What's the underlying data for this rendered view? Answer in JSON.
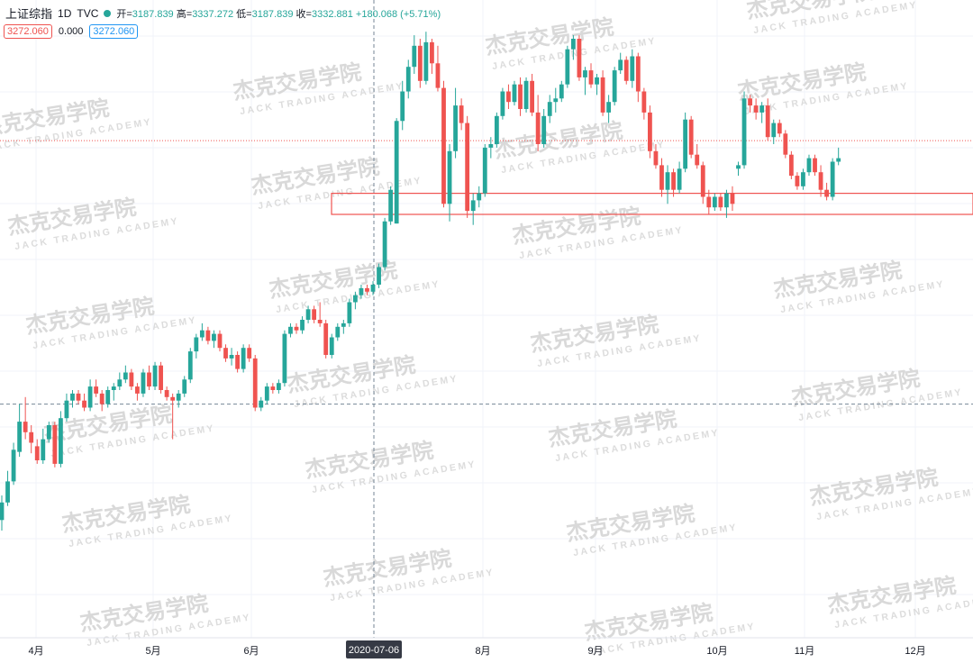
{
  "header": {
    "symbol": "上证综指",
    "interval": "1D",
    "source": "TVC",
    "status_color": "#26a69a",
    "ohlc": {
      "open_label": "开=",
      "open": "3187.839",
      "high_label": "高=",
      "high": "3337.272",
      "low_label": "低=",
      "low": "3187.839",
      "close_label": "收=",
      "close": "3332.881",
      "change": "+180.068 (+5.71%)"
    }
  },
  "indicator": {
    "left_value": "3272.060",
    "middle_value": "0.000",
    "right_value": "3272.060"
  },
  "watermark": {
    "cn": "杰克交易学院",
    "en": "JACK TRADING ACADEMY"
  },
  "colors": {
    "up": "#26a69a",
    "down": "#ef5350",
    "grid": "#f0f3fa",
    "crosshair": "#758696",
    "zone": "#ef5350"
  },
  "chart_data": {
    "type": "candlestick",
    "symbol": "上证综指",
    "interval": "1D",
    "x_tick_labels": [
      "4月",
      "5月",
      "6月",
      "8月",
      "9月",
      "10月",
      "11月",
      "12月"
    ],
    "crosshair_x_label": "2020-07-06",
    "ylim": [
      2600,
      3500
    ],
    "horizontal_levels": [
      {
        "value": 3305,
        "style": "dotted-red"
      },
      {
        "value": 2930,
        "style": "dashed-gray"
      }
    ],
    "zone": {
      "from": 3200,
      "to": 3230
    },
    "candles": [
      {
        "o": 2765,
        "h": 2800,
        "l": 2750,
        "c": 2790
      },
      {
        "o": 2790,
        "h": 2835,
        "l": 2785,
        "c": 2820
      },
      {
        "o": 2820,
        "h": 2875,
        "l": 2815,
        "c": 2865
      },
      {
        "o": 2862,
        "h": 2930,
        "l": 2855,
        "c": 2905
      },
      {
        "o": 2905,
        "h": 2940,
        "l": 2880,
        "c": 2890
      },
      {
        "o": 2890,
        "h": 2900,
        "l": 2860,
        "c": 2875
      },
      {
        "o": 2870,
        "h": 2880,
        "l": 2845,
        "c": 2850
      },
      {
        "o": 2850,
        "h": 2895,
        "l": 2845,
        "c": 2880
      },
      {
        "o": 2880,
        "h": 2905,
        "l": 2875,
        "c": 2900
      },
      {
        "o": 2900,
        "h": 2905,
        "l": 2840,
        "c": 2845
      },
      {
        "o": 2845,
        "h": 2920,
        "l": 2840,
        "c": 2910
      },
      {
        "o": 2910,
        "h": 2945,
        "l": 2905,
        "c": 2935
      },
      {
        "o": 2935,
        "h": 2950,
        "l": 2925,
        "c": 2945
      },
      {
        "o": 2945,
        "h": 2950,
        "l": 2930,
        "c": 2935
      },
      {
        "o": 2935,
        "h": 2945,
        "l": 2920,
        "c": 2925
      },
      {
        "o": 2925,
        "h": 2965,
        "l": 2920,
        "c": 2955
      },
      {
        "o": 2955,
        "h": 2965,
        "l": 2940,
        "c": 2945
      },
      {
        "o": 2945,
        "h": 2950,
        "l": 2920,
        "c": 2930
      },
      {
        "o": 2930,
        "h": 2955,
        "l": 2925,
        "c": 2950
      },
      {
        "o": 2950,
        "h": 2960,
        "l": 2935,
        "c": 2955
      },
      {
        "o": 2955,
        "h": 2975,
        "l": 2950,
        "c": 2965
      },
      {
        "o": 2965,
        "h": 2985,
        "l": 2960,
        "c": 2975
      },
      {
        "o": 2975,
        "h": 2980,
        "l": 2950,
        "c": 2955
      },
      {
        "o": 2955,
        "h": 2960,
        "l": 2935,
        "c": 2945
      },
      {
        "o": 2945,
        "h": 2980,
        "l": 2940,
        "c": 2975
      },
      {
        "o": 2975,
        "h": 2985,
        "l": 2950,
        "c": 2955
      },
      {
        "o": 2955,
        "h": 2990,
        "l": 2950,
        "c": 2985
      },
      {
        "o": 2985,
        "h": 2990,
        "l": 2945,
        "c": 2950
      },
      {
        "o": 2950,
        "h": 2955,
        "l": 2935,
        "c": 2940
      },
      {
        "o": 2940,
        "h": 2945,
        "l": 2880,
        "c": 2935
      },
      {
        "o": 2935,
        "h": 2950,
        "l": 2925,
        "c": 2945
      },
      {
        "o": 2945,
        "h": 2970,
        "l": 2940,
        "c": 2965
      },
      {
        "o": 2965,
        "h": 3010,
        "l": 2960,
        "c": 3005
      },
      {
        "o": 3005,
        "h": 3030,
        "l": 2995,
        "c": 3025
      },
      {
        "o": 3025,
        "h": 3045,
        "l": 3020,
        "c": 3035
      },
      {
        "o": 3035,
        "h": 3040,
        "l": 3015,
        "c": 3020
      },
      {
        "o": 3020,
        "h": 3035,
        "l": 3010,
        "c": 3030
      },
      {
        "o": 3030,
        "h": 3035,
        "l": 3005,
        "c": 3010
      },
      {
        "o": 3010,
        "h": 3015,
        "l": 2990,
        "c": 2995
      },
      {
        "o": 2995,
        "h": 3010,
        "l": 2985,
        "c": 3000
      },
      {
        "o": 3000,
        "h": 3005,
        "l": 2975,
        "c": 2980
      },
      {
        "o": 2980,
        "h": 3015,
        "l": 2975,
        "c": 3010
      },
      {
        "o": 3010,
        "h": 3015,
        "l": 2990,
        "c": 2995
      },
      {
        "o": 2995,
        "h": 3000,
        "l": 2920,
        "c": 2925
      },
      {
        "o": 2925,
        "h": 2940,
        "l": 2920,
        "c": 2935
      },
      {
        "o": 2935,
        "h": 2960,
        "l": 2930,
        "c": 2955
      },
      {
        "o": 2955,
        "h": 2960,
        "l": 2945,
        "c": 2950
      },
      {
        "o": 2950,
        "h": 2965,
        "l": 2945,
        "c": 2960
      },
      {
        "o": 2960,
        "h": 3035,
        "l": 2955,
        "c": 3030
      },
      {
        "o": 3030,
        "h": 3045,
        "l": 3025,
        "c": 3040
      },
      {
        "o": 3040,
        "h": 3045,
        "l": 3030,
        "c": 3035
      },
      {
        "o": 3035,
        "h": 3055,
        "l": 3030,
        "c": 3050
      },
      {
        "o": 3050,
        "h": 3070,
        "l": 3045,
        "c": 3065
      },
      {
        "o": 3065,
        "h": 3070,
        "l": 3045,
        "c": 3050
      },
      {
        "o": 3050,
        "h": 3075,
        "l": 3040,
        "c": 3045
      },
      {
        "o": 3045,
        "h": 3050,
        "l": 2995,
        "c": 3000
      },
      {
        "o": 3000,
        "h": 3030,
        "l": 2995,
        "c": 3025
      },
      {
        "o": 3025,
        "h": 3045,
        "l": 3020,
        "c": 3040
      },
      {
        "o": 3040,
        "h": 3050,
        "l": 3030,
        "c": 3045
      },
      {
        "o": 3045,
        "h": 3080,
        "l": 3040,
        "c": 3075
      },
      {
        "o": 3075,
        "h": 3090,
        "l": 3065,
        "c": 3085
      },
      {
        "o": 3085,
        "h": 3100,
        "l": 3080,
        "c": 3095
      },
      {
        "o": 3095,
        "h": 3100,
        "l": 3085,
        "c": 3090
      },
      {
        "o": 3090,
        "h": 3105,
        "l": 3085,
        "c": 3100
      },
      {
        "o": 3100,
        "h": 3130,
        "l": 3095,
        "c": 3125
      },
      {
        "o": 3125,
        "h": 3195,
        "l": 3120,
        "c": 3190
      },
      {
        "o": 3190,
        "h": 3240,
        "l": 3185,
        "c": 3235
      },
      {
        "o": 3187,
        "h": 3337,
        "l": 3187,
        "c": 3333
      },
      {
        "o": 3333,
        "h": 3390,
        "l": 3320,
        "c": 3375
      },
      {
        "o": 3375,
        "h": 3420,
        "l": 3365,
        "c": 3410
      },
      {
        "o": 3410,
        "h": 3455,
        "l": 3400,
        "c": 3440
      },
      {
        "o": 3440,
        "h": 3450,
        "l": 3380,
        "c": 3390
      },
      {
        "o": 3390,
        "h": 3460,
        "l": 3385,
        "c": 3445
      },
      {
        "o": 3445,
        "h": 3450,
        "l": 3400,
        "c": 3415
      },
      {
        "o": 3415,
        "h": 3440,
        "l": 3375,
        "c": 3380
      },
      {
        "o": 3380,
        "h": 3390,
        "l": 3210,
        "c": 3215
      },
      {
        "o": 3215,
        "h": 3300,
        "l": 3190,
        "c": 3290
      },
      {
        "o": 3290,
        "h": 3380,
        "l": 3280,
        "c": 3355
      },
      {
        "o": 3355,
        "h": 3365,
        "l": 3320,
        "c": 3330
      },
      {
        "o": 3330,
        "h": 3340,
        "l": 3195,
        "c": 3205
      },
      {
        "o": 3205,
        "h": 3230,
        "l": 3185,
        "c": 3220
      },
      {
        "o": 3220,
        "h": 3240,
        "l": 3210,
        "c": 3230
      },
      {
        "o": 3230,
        "h": 3300,
        "l": 3225,
        "c": 3295
      },
      {
        "o": 3295,
        "h": 3310,
        "l": 3280,
        "c": 3300
      },
      {
        "o": 3300,
        "h": 3345,
        "l": 3295,
        "c": 3340
      },
      {
        "o": 3340,
        "h": 3380,
        "l": 3335,
        "c": 3375
      },
      {
        "o": 3375,
        "h": 3385,
        "l": 3350,
        "c": 3360
      },
      {
        "o": 3360,
        "h": 3390,
        "l": 3355,
        "c": 3385
      },
      {
        "o": 3385,
        "h": 3395,
        "l": 3340,
        "c": 3350
      },
      {
        "o": 3350,
        "h": 3395,
        "l": 3345,
        "c": 3390
      },
      {
        "o": 3390,
        "h": 3400,
        "l": 3340,
        "c": 3345
      },
      {
        "o": 3345,
        "h": 3370,
        "l": 3290,
        "c": 3300
      },
      {
        "o": 3300,
        "h": 3350,
        "l": 3295,
        "c": 3340
      },
      {
        "o": 3340,
        "h": 3370,
        "l": 3330,
        "c": 3360
      },
      {
        "o": 3360,
        "h": 3380,
        "l": 3345,
        "c": 3365
      },
      {
        "o": 3365,
        "h": 3390,
        "l": 3360,
        "c": 3385
      },
      {
        "o": 3385,
        "h": 3440,
        "l": 3380,
        "c": 3435
      },
      {
        "o": 3435,
        "h": 3455,
        "l": 3420,
        "c": 3450
      },
      {
        "o": 3450,
        "h": 3455,
        "l": 3390,
        "c": 3395
      },
      {
        "o": 3395,
        "h": 3410,
        "l": 3370,
        "c": 3405
      },
      {
        "o": 3405,
        "h": 3415,
        "l": 3380,
        "c": 3385
      },
      {
        "o": 3385,
        "h": 3400,
        "l": 3370,
        "c": 3395
      },
      {
        "o": 3395,
        "h": 3405,
        "l": 3340,
        "c": 3345
      },
      {
        "o": 3345,
        "h": 3370,
        "l": 3330,
        "c": 3360
      },
      {
        "o": 3360,
        "h": 3410,
        "l": 3355,
        "c": 3405
      },
      {
        "o": 3405,
        "h": 3430,
        "l": 3400,
        "c": 3420
      },
      {
        "o": 3420,
        "h": 3425,
        "l": 3385,
        "c": 3390
      },
      {
        "o": 3390,
        "h": 3435,
        "l": 3380,
        "c": 3425
      },
      {
        "o": 3425,
        "h": 3430,
        "l": 3360,
        "c": 3375
      },
      {
        "o": 3375,
        "h": 3380,
        "l": 3335,
        "c": 3345
      },
      {
        "o": 3345,
        "h": 3355,
        "l": 3280,
        "c": 3290
      },
      {
        "o": 3290,
        "h": 3300,
        "l": 3265,
        "c": 3270
      },
      {
        "o": 3270,
        "h": 3280,
        "l": 3225,
        "c": 3235
      },
      {
        "o": 3235,
        "h": 3270,
        "l": 3215,
        "c": 3260
      },
      {
        "o": 3260,
        "h": 3265,
        "l": 3225,
        "c": 3235
      },
      {
        "o": 3235,
        "h": 3275,
        "l": 3230,
        "c": 3265
      },
      {
        "o": 3265,
        "h": 3345,
        "l": 3260,
        "c": 3335
      },
      {
        "o": 3335,
        "h": 3340,
        "l": 3280,
        "c": 3285
      },
      {
        "o": 3285,
        "h": 3300,
        "l": 3265,
        "c": 3270
      },
      {
        "o": 3270,
        "h": 3275,
        "l": 3215,
        "c": 3225
      },
      {
        "o": 3225,
        "h": 3235,
        "l": 3200,
        "c": 3210
      },
      {
        "o": 3210,
        "h": 3230,
        "l": 3205,
        "c": 3225
      },
      {
        "o": 3225,
        "h": 3230,
        "l": 3205,
        "c": 3210
      },
      {
        "o": 3210,
        "h": 3235,
        "l": 3195,
        "c": 3230
      },
      {
        "o": 3230,
        "h": 3240,
        "l": 3205,
        "c": 3215
      },
      {
        "o": 3265,
        "h": 3275,
        "l": 3255,
        "c": 3270
      },
      {
        "o": 3270,
        "h": 3375,
        "l": 3265,
        "c": 3365
      },
      {
        "o": 3365,
        "h": 3370,
        "l": 3345,
        "c": 3355
      },
      {
        "o": 3355,
        "h": 3365,
        "l": 3335,
        "c": 3345
      },
      {
        "o": 3345,
        "h": 3360,
        "l": 3330,
        "c": 3355
      },
      {
        "o": 3355,
        "h": 3365,
        "l": 3305,
        "c": 3310
      },
      {
        "o": 3310,
        "h": 3335,
        "l": 3300,
        "c": 3330
      },
      {
        "o": 3330,
        "h": 3335,
        "l": 3310,
        "c": 3315
      },
      {
        "o": 3315,
        "h": 3320,
        "l": 3280,
        "c": 3285
      },
      {
        "o": 3285,
        "h": 3290,
        "l": 3250,
        "c": 3255
      },
      {
        "o": 3255,
        "h": 3260,
        "l": 3235,
        "c": 3240
      },
      {
        "o": 3240,
        "h": 3265,
        "l": 3235,
        "c": 3260
      },
      {
        "o": 3260,
        "h": 3285,
        "l": 3255,
        "c": 3280
      },
      {
        "o": 3280,
        "h": 3285,
        "l": 3255,
        "c": 3260
      },
      {
        "o": 3260,
        "h": 3270,
        "l": 3225,
        "c": 3235
      },
      {
        "o": 3235,
        "h": 3245,
        "l": 3220,
        "c": 3225
      },
      {
        "o": 3225,
        "h": 3280,
        "l": 3220,
        "c": 3275
      },
      {
        "o": 3275,
        "h": 3295,
        "l": 3270,
        "c": 3280
      }
    ]
  }
}
